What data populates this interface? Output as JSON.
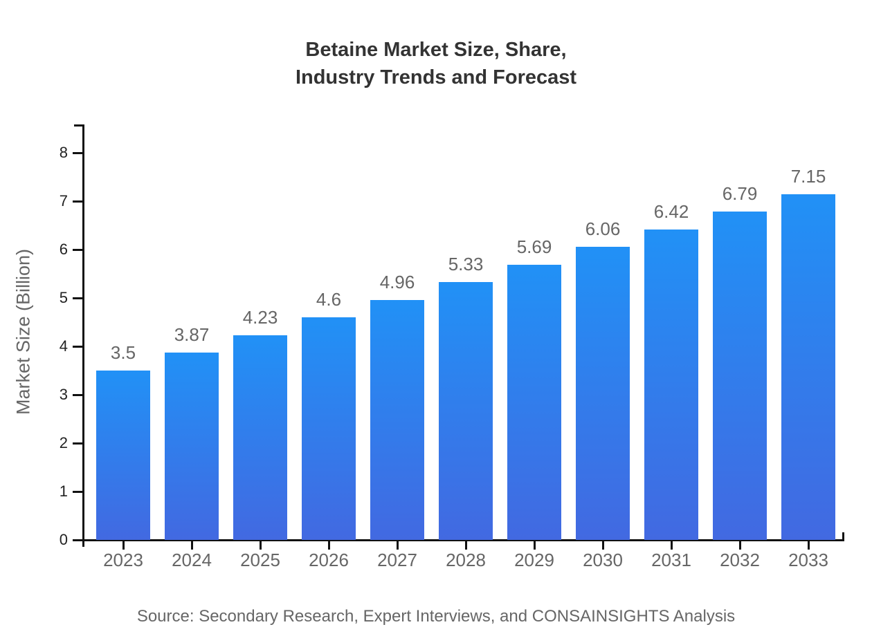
{
  "title": {
    "line1": "Betaine Market Size, Share,",
    "line2": "Industry Trends and Forecast"
  },
  "source": {
    "text": "Source: Secondary Research, Expert Interviews, and CONSAINSIGHTS Analysis"
  },
  "colors": {
    "background": "#ffffff",
    "bar_gradient_top": "#2191f6",
    "bar_gradient_bottom": "#4269e1",
    "axis": "#111111",
    "title_text": "#333333",
    "muted_text": "#666666",
    "y_tick_text": "#222222"
  },
  "chart_data": {
    "type": "bar",
    "title": "Betaine Market Size, Share, Industry Trends and Forecast",
    "categories": [
      "2023",
      "2024",
      "2025",
      "2026",
      "2027",
      "2028",
      "2029",
      "2030",
      "2031",
      "2032",
      "2033"
    ],
    "values": [
      3.5,
      3.87,
      4.23,
      4.6,
      4.96,
      5.33,
      5.69,
      6.06,
      6.42,
      6.79,
      7.15
    ],
    "value_labels": [
      "3.5",
      "3.87",
      "4.23",
      "4.6",
      "4.96",
      "5.33",
      "5.69",
      "6.06",
      "6.42",
      "6.79",
      "7.15"
    ],
    "xlabel": "",
    "ylabel": "Market Size (Billion)",
    "ylim": [
      0,
      8.6
    ],
    "y_ticks": [
      0,
      1,
      2,
      3,
      4,
      5,
      6,
      7,
      8
    ],
    "grid": false,
    "legend": "none"
  }
}
